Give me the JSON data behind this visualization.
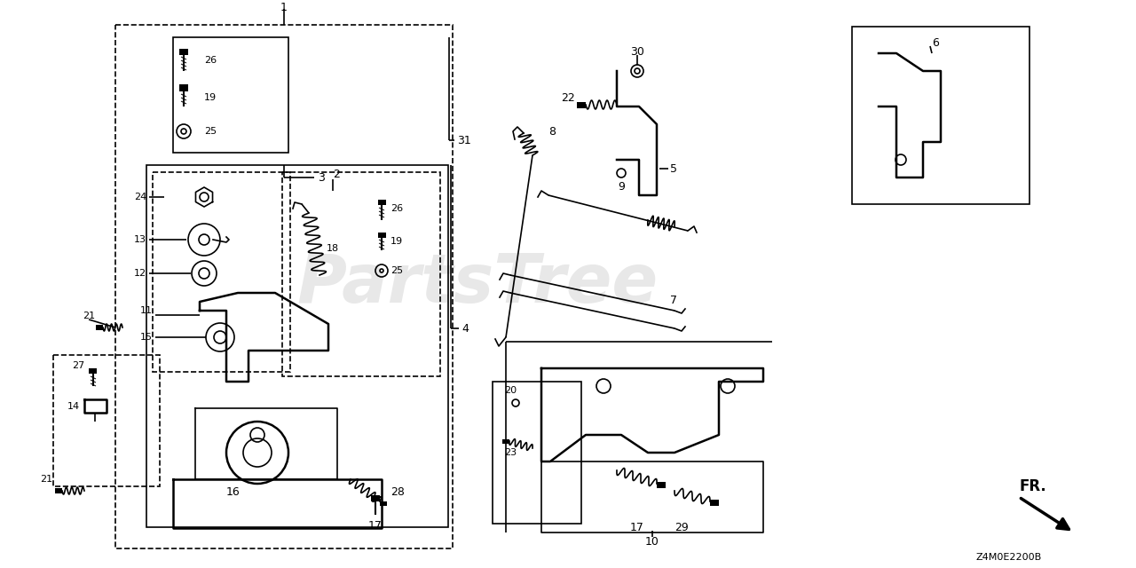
{
  "bg_color": "#ffffff",
  "line_color": "#000000",
  "watermark_color": "#cccccc",
  "footer": "Z4M0E2200B",
  "figsize": [
    12.8,
    6.4
  ],
  "dpi": 100
}
